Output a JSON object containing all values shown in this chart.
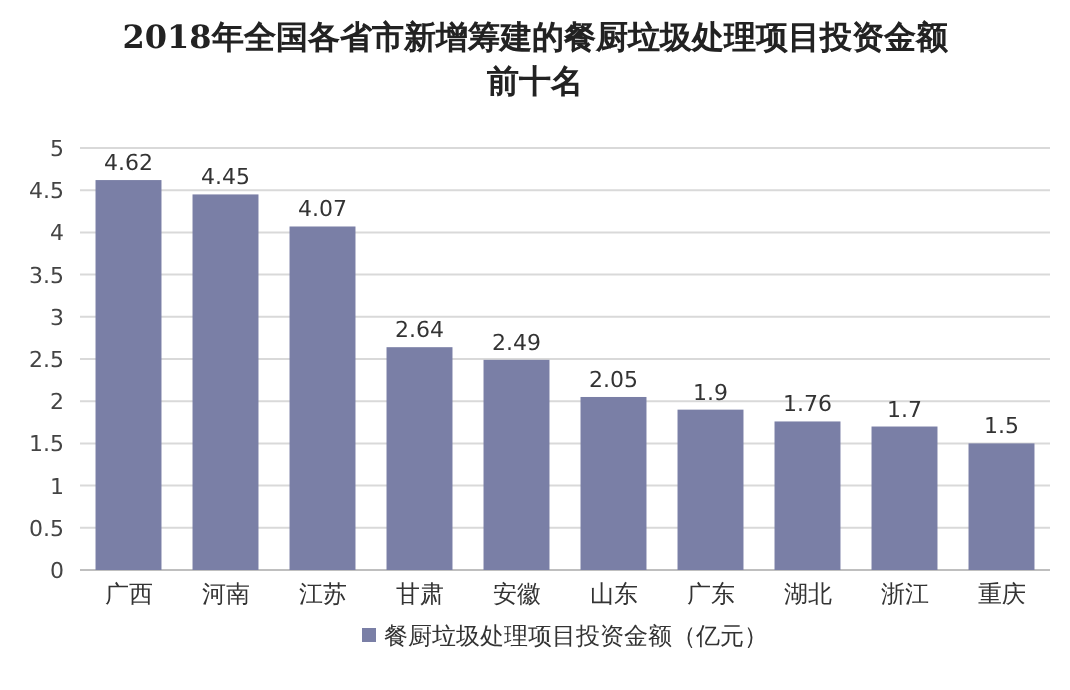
{
  "chart_data": {
    "type": "bar",
    "title": "2018年全国各省市新增筹建的餐厨垃圾处理项目投资金额前十名",
    "categories": [
      "广西",
      "河南",
      "江苏",
      "甘肃",
      "安徽",
      "山东",
      "广东",
      "湖北",
      "浙江",
      "重庆"
    ],
    "series": [
      {
        "name": "餐厨垃圾处理项目投资金额（亿元）",
        "color": "#7a7fa6",
        "values": [
          4.62,
          4.45,
          4.07,
          2.64,
          2.49,
          2.05,
          1.9,
          1.76,
          1.7,
          1.5
        ]
      }
    ],
    "ylim": [
      0,
      5
    ],
    "yticks": [
      0,
      0.5,
      1,
      1.5,
      2,
      2.5,
      3,
      3.5,
      4,
      4.5,
      5
    ],
    "grid": "y",
    "legend": "bottom",
    "data_labels": true
  }
}
